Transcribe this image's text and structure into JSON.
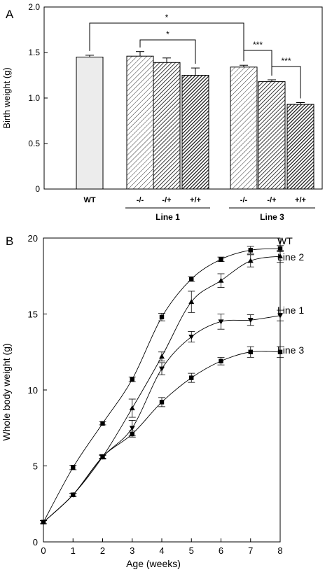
{
  "chart_data": [
    {
      "panel": "A",
      "type": "bar",
      "ylabel": "Birth weight (g)",
      "ylim": [
        0,
        2.0
      ],
      "yticks": [
        "0",
        "0.5",
        "1.0",
        "1.5",
        "2.0"
      ],
      "bars": [
        {
          "label": "WT",
          "value": 1.45,
          "error": 0.02,
          "fill": "#ececec",
          "pattern": "none"
        },
        {
          "label": "-/-",
          "value": 1.46,
          "error": 0.05,
          "fill": "#ffffff",
          "pattern": "light-hatch"
        },
        {
          "label": "-/+",
          "value": 1.39,
          "error": 0.05,
          "fill": "#ffffff",
          "pattern": "medium-hatch"
        },
        {
          "label": "+/+",
          "value": 1.25,
          "error": 0.08,
          "fill": "#ffffff",
          "pattern": "dark-hatch"
        },
        {
          "label": "-/-",
          "value": 1.34,
          "error": 0.02,
          "fill": "#ffffff",
          "pattern": "light-hatch"
        },
        {
          "label": "-/+",
          "value": 1.18,
          "error": 0.02,
          "fill": "#ffffff",
          "pattern": "medium-hatch"
        },
        {
          "label": "+/+",
          "value": 0.93,
          "error": 0.02,
          "fill": "#ffffff",
          "pattern": "dark-hatch"
        }
      ],
      "groups": [
        {
          "label": "Line 1",
          "bars": [
            1,
            2,
            3
          ]
        },
        {
          "label": "Line 3",
          "bars": [
            4,
            5,
            6
          ]
        }
      ],
      "significance": [
        {
          "from": 0,
          "to": 4,
          "label": "*"
        },
        {
          "from": 1,
          "to": 3,
          "label": "*"
        },
        {
          "from": 4,
          "to": 5,
          "label": "***"
        },
        {
          "from": 5,
          "to": 6,
          "label": "***"
        }
      ]
    },
    {
      "panel": "B",
      "type": "line",
      "xlabel": "Age (weeks)",
      "ylabel": "Whole body weight (g)",
      "xlim": [
        0,
        8
      ],
      "ylim": [
        0,
        20
      ],
      "xticks": [
        "0",
        "1",
        "2",
        "3",
        "4",
        "5",
        "6",
        "7",
        "8"
      ],
      "yticks": [
        "0",
        "5",
        "10",
        "15",
        "20"
      ],
      "x": [
        0,
        1,
        2,
        3,
        4,
        5,
        6,
        7,
        8
      ],
      "series": [
        {
          "name": "WT",
          "marker": "square",
          "values": [
            1.3,
            4.9,
            7.8,
            10.7,
            14.8,
            17.3,
            18.6,
            19.2,
            19.3
          ],
          "errors": [
            0.1,
            0.15,
            0.1,
            0.15,
            0.25,
            0.15,
            0.15,
            0.25,
            0.2
          ]
        },
        {
          "name": "Line 2",
          "marker": "triangle-up",
          "values": [
            1.3,
            3.1,
            5.6,
            8.8,
            12.2,
            15.8,
            17.2,
            18.5,
            18.8
          ],
          "errors": [
            0.1,
            0.1,
            0.15,
            0.6,
            0.3,
            0.7,
            0.45,
            0.4,
            0.4
          ]
        },
        {
          "name": "Line 1",
          "marker": "triangle-down",
          "values": [
            1.3,
            3.1,
            5.6,
            7.5,
            11.4,
            13.5,
            14.5,
            14.6,
            14.9
          ],
          "errors": [
            0.1,
            0.1,
            0.1,
            0.5,
            0.4,
            0.35,
            0.5,
            0.35,
            0.35
          ]
        },
        {
          "name": "Line 3",
          "marker": "square",
          "values": [
            1.3,
            3.1,
            5.6,
            7.1,
            9.2,
            10.8,
            11.9,
            12.5,
            12.5
          ],
          "errors": [
            0.1,
            0.1,
            0.1,
            0.2,
            0.3,
            0.3,
            0.25,
            0.35,
            0.35
          ]
        }
      ]
    }
  ]
}
